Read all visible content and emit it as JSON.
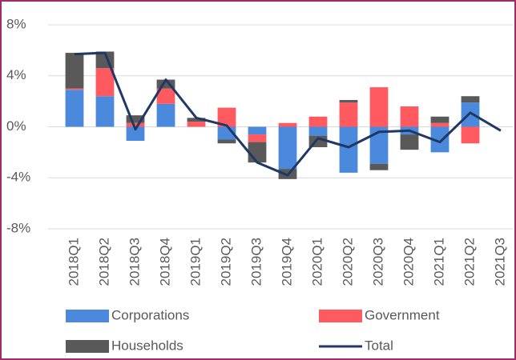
{
  "chart_data": {
    "type": "bar",
    "categories": [
      "2018Q1",
      "2018Q2",
      "2018Q3",
      "2018Q4",
      "2019Q1",
      "2019Q2",
      "2019Q3",
      "2019Q4",
      "2020Q1",
      "2020Q2",
      "2020Q3",
      "2020Q4",
      "2021Q1",
      "2021Q2",
      "2021Q3"
    ],
    "series": [
      {
        "name": "Corporations",
        "color": "#4a89dc",
        "values": [
          2.9,
          2.4,
          -1.1,
          1.8,
          0,
          -1.0,
          -0.6,
          -3.3,
          -0.7,
          -3.6,
          -2.9,
          -0.6,
          -2.0,
          1.9,
          null
        ]
      },
      {
        "name": "Government",
        "color": "#ff5a5f",
        "values": [
          0.1,
          2.2,
          0.3,
          1.2,
          0.4,
          1.5,
          -0.6,
          0.3,
          0.8,
          1.9,
          3.1,
          1.6,
          0.3,
          -1.3,
          null
        ]
      },
      {
        "name": "Households",
        "color": "#595959",
        "values": [
          2.8,
          1.3,
          0.6,
          0.7,
          0.3,
          -0.3,
          -1.6,
          -0.8,
          -0.9,
          0.2,
          -0.5,
          -1.2,
          0.5,
          0.5,
          null
        ]
      },
      {
        "name": "Total",
        "type": "line",
        "color": "#1f3864",
        "values": [
          5.7,
          5.8,
          -0.2,
          3.7,
          0.7,
          0.1,
          -2.8,
          -3.8,
          -0.9,
          -1.6,
          -0.4,
          -0.3,
          -1.2,
          1.1,
          -0.3
        ]
      }
    ],
    "ylim": [
      -8,
      8
    ],
    "yticks": [
      {
        "value": -8,
        "label": "-8%"
      },
      {
        "value": -4,
        "label": "-4%"
      },
      {
        "value": 0,
        "label": "0%"
      },
      {
        "value": 4,
        "label": "4%"
      },
      {
        "value": 8,
        "label": "8%"
      }
    ],
    "grid": true
  }
}
